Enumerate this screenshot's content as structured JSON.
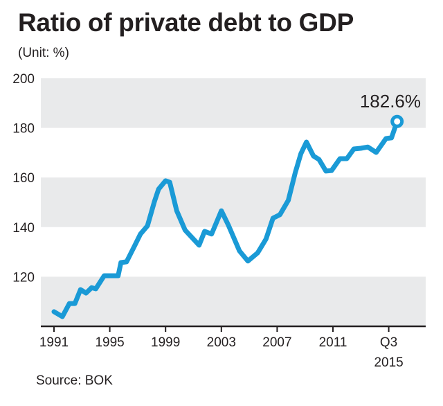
{
  "chart_data": {
    "type": "line",
    "title": "Ratio of private debt to GDP",
    "subtitle": "(Unit: %)",
    "source": "Source: BOK",
    "ylim": [
      100,
      200
    ],
    "yticks": [
      120,
      140,
      160,
      180,
      200
    ],
    "xlim": [
      1990.1,
      2016.9
    ],
    "xticks": [
      {
        "value": 1991,
        "label": "1991"
      },
      {
        "value": 1995,
        "label": "1995"
      },
      {
        "value": 1999,
        "label": "1999"
      },
      {
        "value": 2003,
        "label": "2003"
      },
      {
        "value": 2007,
        "label": "2007"
      },
      {
        "value": 2011,
        "label": "2011"
      },
      {
        "value": 2015,
        "label": "Q3",
        "label2": "2015"
      }
    ],
    "grid": "alternating horizontal bands",
    "colors": {
      "line": "#1a9ad6",
      "band": "#e9eaeb",
      "axis": "#231f20"
    },
    "annotation": "182.6%",
    "series": [
      {
        "x": [
          1991.0,
          1991.6,
          1992.1,
          1992.5,
          1992.9,
          1993.3,
          1993.7,
          1994.0,
          1994.6,
          1995.6,
          1995.8,
          1996.2,
          1996.8,
          1997.2,
          1997.7,
          1998.2,
          1998.5,
          1999.0,
          1999.3,
          1999.8,
          2000.4,
          2001.4,
          2001.8,
          2002.3,
          2003.0,
          2003.5,
          2004.3,
          2004.9,
          2005.6,
          2006.2,
          2006.7,
          2007.2,
          2007.8,
          2008.3,
          2008.7,
          2009.1,
          2009.6,
          2010.0,
          2010.5,
          2010.9,
          2011.5,
          2012.0,
          2012.5,
          2013.0,
          2013.5,
          2014.1,
          2014.8,
          2015.2,
          2015.6
        ],
        "y": [
          105.9,
          103.9,
          109.2,
          109.2,
          114.8,
          113.4,
          115.6,
          115.1,
          120.4,
          120.4,
          125.7,
          126.0,
          132.7,
          137.2,
          140.5,
          150.3,
          155.3,
          158.7,
          158.1,
          146.6,
          138.8,
          132.7,
          138.3,
          137.2,
          146.6,
          140.8,
          130.4,
          126.3,
          129.6,
          135.2,
          143.6,
          145.0,
          150.8,
          162.0,
          169.6,
          174.3,
          168.7,
          167.3,
          162.6,
          162.8,
          167.6,
          167.6,
          171.5,
          171.8,
          172.3,
          170.1,
          175.7,
          176.0,
          182.6
        ]
      }
    ]
  }
}
